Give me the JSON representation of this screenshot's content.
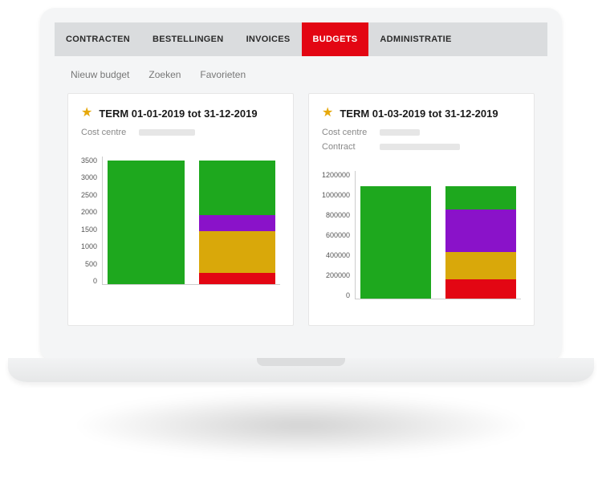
{
  "tabs": [
    {
      "label": "CONTRACTEN"
    },
    {
      "label": "BESTELLINGEN"
    },
    {
      "label": "INVOICES"
    },
    {
      "label": "BUDGETS",
      "active": true,
      "active_bg": "#e30613",
      "active_fg": "#ffffff"
    },
    {
      "label": "ADMINISTRATIE"
    }
  ],
  "subnav": [
    {
      "label": "Nieuw budget"
    },
    {
      "label": "Zoeken"
    },
    {
      "label": "Favorieten"
    }
  ],
  "cards": [
    {
      "title": "TERM 01-01-2019 tot 31-12-2019",
      "star_color": "#e6a80a",
      "meta": [
        {
          "label": "Cost centre",
          "redact_width": 70
        }
      ],
      "chart": {
        "type": "stacked-bar",
        "ymax": 3500,
        "yticks": [
          3500,
          3000,
          2500,
          2000,
          1500,
          1000,
          500,
          0
        ],
        "bars": [
          {
            "segments": [
              {
                "value": 3400,
                "color": "#1ea81e"
              }
            ]
          },
          {
            "segments": [
              {
                "value": 300,
                "color": "#e30613"
              },
              {
                "value": 1150,
                "color": "#d9a80a"
              },
              {
                "value": 450,
                "color": "#8a12c9"
              },
              {
                "value": 1500,
                "color": "#1ea81e"
              }
            ]
          }
        ],
        "axis_color": "#cccccc",
        "tick_fontsize": 9
      }
    },
    {
      "title": "TERM 01-03-2019 tot 31-12-2019",
      "star_color": "#e6a80a",
      "meta": [
        {
          "label": "Cost centre",
          "redact_width": 50
        },
        {
          "label": "Contract",
          "redact_width": 100
        }
      ],
      "chart": {
        "type": "stacked-bar",
        "ymax": 1200000,
        "yticks": [
          1200000,
          1000000,
          800000,
          600000,
          400000,
          200000,
          0
        ],
        "bars": [
          {
            "segments": [
              {
                "value": 1060000,
                "color": "#1ea81e"
              }
            ]
          },
          {
            "segments": [
              {
                "value": 180000,
                "color": "#e30613"
              },
              {
                "value": 260000,
                "color": "#d9a80a"
              },
              {
                "value": 400000,
                "color": "#8a12c9"
              },
              {
                "value": 220000,
                "color": "#1ea81e"
              }
            ]
          }
        ],
        "axis_color": "#cccccc",
        "tick_fontsize": 9
      }
    }
  ],
  "colors": {
    "page_bg": "#f4f5f6",
    "tabbar_bg": "#dadcde",
    "card_bg": "#ffffff",
    "card_border": "#e6e6e6",
    "text_muted": "#888888"
  }
}
